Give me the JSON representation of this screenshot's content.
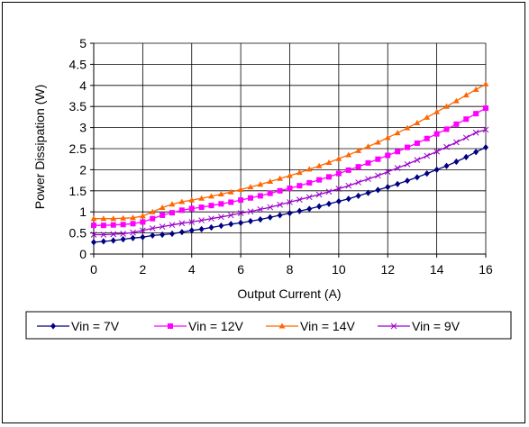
{
  "chart_data": {
    "type": "line",
    "title": "",
    "xlabel": "Output Current (A)",
    "ylabel": "Power Dissipation (W)",
    "xlim": [
      0,
      16
    ],
    "ylim": [
      0,
      5
    ],
    "xticks": [
      "0",
      "2",
      "4",
      "6",
      "8",
      "10",
      "12",
      "14",
      "16"
    ],
    "yticks": [
      "0",
      "0.5",
      "1",
      "1.5",
      "2",
      "2.5",
      "3",
      "3.5",
      "4",
      "4.5",
      "5"
    ],
    "grid": true,
    "legend_position": "bottom",
    "series": [
      {
        "name": "Vin = 7V",
        "color": "#000080",
        "marker": "diamond",
        "x": [
          0,
          0.4,
          0.8,
          1.2,
          1.6,
          2.0,
          2.4,
          2.8,
          3.2,
          3.6,
          4.0,
          4.4,
          4.8,
          5.2,
          5.6,
          6.0,
          6.4,
          6.8,
          7.2,
          7.6,
          8.0,
          8.4,
          8.8,
          9.2,
          9.6,
          10.0,
          10.4,
          10.8,
          11.2,
          11.6,
          12.0,
          12.4,
          12.8,
          13.2,
          13.6,
          14.0,
          14.4,
          14.8,
          15.2,
          15.6,
          16.0
        ],
        "y": [
          0.28,
          0.3,
          0.32,
          0.35,
          0.38,
          0.4,
          0.44,
          0.46,
          0.48,
          0.52,
          0.56,
          0.59,
          0.63,
          0.67,
          0.71,
          0.74,
          0.78,
          0.82,
          0.87,
          0.92,
          0.97,
          1.02,
          1.07,
          1.13,
          1.19,
          1.25,
          1.31,
          1.38,
          1.45,
          1.52,
          1.59,
          1.66,
          1.74,
          1.82,
          1.91,
          2.0,
          2.09,
          2.19,
          2.3,
          2.42,
          2.53
        ]
      },
      {
        "name": "Vin = 12V",
        "color": "#FF00FF",
        "marker": "square",
        "x": [
          0,
          0.4,
          0.8,
          1.2,
          1.6,
          2.0,
          2.4,
          2.8,
          3.2,
          3.6,
          4.0,
          4.4,
          4.8,
          5.2,
          5.6,
          6.0,
          6.4,
          6.8,
          7.2,
          7.6,
          8.0,
          8.4,
          8.8,
          9.2,
          9.6,
          10.0,
          10.4,
          10.8,
          11.2,
          11.6,
          12.0,
          12.4,
          12.8,
          13.2,
          13.6,
          14.0,
          14.4,
          14.8,
          15.2,
          15.6,
          16.0
        ],
        "y": [
          0.68,
          0.68,
          0.69,
          0.7,
          0.72,
          0.76,
          0.84,
          0.92,
          0.98,
          1.04,
          1.08,
          1.11,
          1.15,
          1.19,
          1.23,
          1.28,
          1.33,
          1.38,
          1.44,
          1.5,
          1.56,
          1.62,
          1.69,
          1.76,
          1.83,
          1.91,
          1.99,
          2.07,
          2.16,
          2.25,
          2.34,
          2.43,
          2.53,
          2.63,
          2.74,
          2.85,
          2.96,
          3.08,
          3.2,
          3.33,
          3.46
        ]
      },
      {
        "name": "Vin = 14V",
        "color": "#FF6600",
        "marker": "triangle",
        "x": [
          0,
          0.4,
          0.8,
          1.2,
          1.6,
          2.0,
          2.4,
          2.8,
          3.2,
          3.6,
          4.0,
          4.4,
          4.8,
          5.2,
          5.6,
          6.0,
          6.4,
          6.8,
          7.2,
          7.6,
          8.0,
          8.4,
          8.8,
          9.2,
          9.6,
          10.0,
          10.4,
          10.8,
          11.2,
          11.6,
          12.0,
          12.4,
          12.8,
          13.2,
          13.6,
          14.0,
          14.4,
          14.8,
          15.2,
          15.6,
          16.0
        ],
        "y": [
          0.84,
          0.84,
          0.84,
          0.85,
          0.86,
          0.9,
          1.0,
          1.1,
          1.18,
          1.24,
          1.28,
          1.32,
          1.37,
          1.42,
          1.47,
          1.53,
          1.59,
          1.65,
          1.72,
          1.79,
          1.86,
          1.93,
          2.01,
          2.09,
          2.17,
          2.26,
          2.35,
          2.45,
          2.55,
          2.65,
          2.76,
          2.87,
          2.99,
          3.11,
          3.24,
          3.37,
          3.5,
          3.63,
          3.77,
          3.9,
          4.03
        ]
      },
      {
        "name": "Vin = 9V",
        "color": "#9900CC",
        "marker": "x",
        "x": [
          0,
          0.4,
          0.8,
          1.2,
          1.6,
          2.0,
          2.4,
          2.8,
          3.2,
          3.6,
          4.0,
          4.4,
          4.8,
          5.2,
          5.6,
          6.0,
          6.4,
          6.8,
          7.2,
          7.6,
          8.0,
          8.4,
          8.8,
          9.2,
          9.6,
          10.0,
          10.4,
          10.8,
          11.2,
          11.6,
          12.0,
          12.4,
          12.8,
          13.2,
          13.6,
          14.0,
          14.4,
          14.8,
          15.2,
          15.6,
          16.0
        ],
        "y": [
          0.46,
          0.46,
          0.47,
          0.48,
          0.51,
          0.56,
          0.61,
          0.65,
          0.69,
          0.73,
          0.76,
          0.8,
          0.84,
          0.88,
          0.92,
          0.97,
          1.01,
          1.06,
          1.11,
          1.17,
          1.23,
          1.29,
          1.35,
          1.41,
          1.48,
          1.55,
          1.62,
          1.7,
          1.78,
          1.86,
          1.95,
          2.04,
          2.13,
          2.23,
          2.33,
          2.43,
          2.54,
          2.65,
          2.76,
          2.88,
          2.95
        ]
      }
    ]
  }
}
